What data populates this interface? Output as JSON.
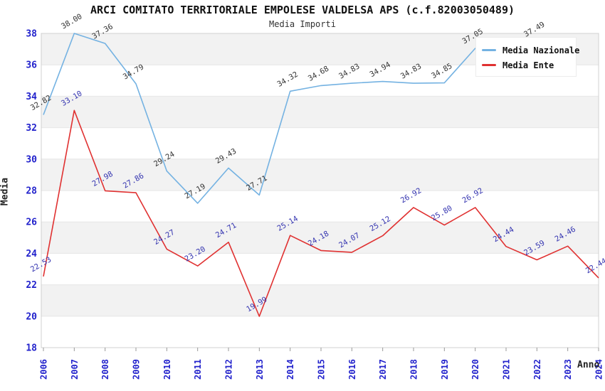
{
  "page": {
    "background": "#ffffff"
  },
  "chart_data": {
    "type": "line",
    "title": "ARCI COMITATO TERRITORIALE EMPOLESE VALDELSA APS (c.f.82003050489)",
    "subtitle": "Media Importi",
    "xlabel": "Anno",
    "ylabel": "Media",
    "ylim": [
      18,
      38
    ],
    "ytick_step": 2,
    "yticks": [
      18,
      20,
      22,
      24,
      26,
      28,
      30,
      32,
      34,
      36,
      38
    ],
    "categories": [
      "2006",
      "2007",
      "2008",
      "2009",
      "2010",
      "2011",
      "2012",
      "2013",
      "2014",
      "2015",
      "2016",
      "2017",
      "2018",
      "2019",
      "2020",
      "2021",
      "2022",
      "2023",
      "2024"
    ],
    "series": [
      {
        "name": "Media Nazionale",
        "color": "#74b2e2",
        "label_color": "#333333",
        "values": [
          32.82,
          38.0,
          37.36,
          34.79,
          29.24,
          27.19,
          29.43,
          27.71,
          34.32,
          34.68,
          34.83,
          34.94,
          34.83,
          34.85,
          37.05,
          null,
          37.49,
          null,
          null
        ]
      },
      {
        "name": "Media Ente",
        "color": "#e03131",
        "label_color": "#3434b0",
        "values": [
          22.53,
          33.1,
          27.98,
          27.86,
          24.27,
          23.2,
          24.71,
          19.99,
          25.14,
          24.18,
          24.07,
          25.12,
          26.92,
          25.8,
          26.92,
          24.44,
          23.59,
          24.46,
          22.44
        ]
      }
    ],
    "legend": {
      "position": "top-right",
      "entries": [
        "Media Nazionale",
        "Media Ente"
      ]
    },
    "grid": "horizontal gridlines every 2 units, alternating gray bands",
    "style": {
      "tick_label_color": "#2222cc",
      "band_color": "#f2f2f2",
      "grid_color": "#e6e6e6",
      "border_color": "#d0d0d0",
      "tick_mark_color": "#999999"
    }
  }
}
